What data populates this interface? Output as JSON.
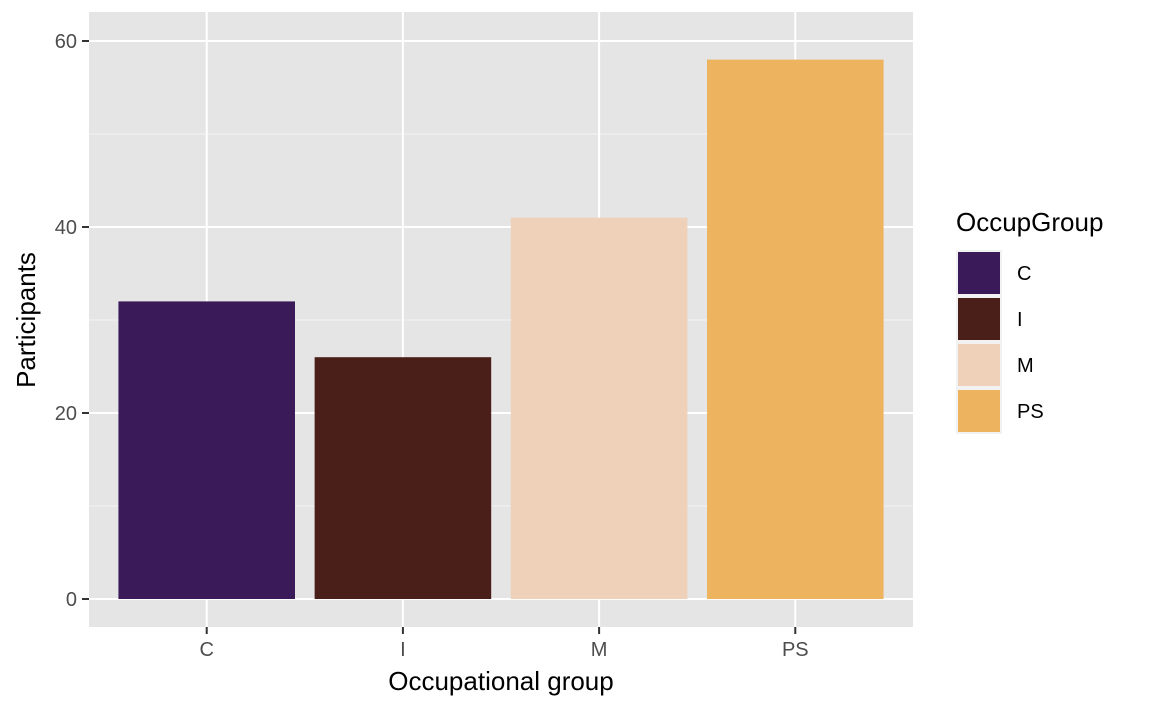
{
  "chart_data": {
    "type": "bar",
    "title": "",
    "xlabel": "Occupational group",
    "ylabel": "Participants",
    "categories": [
      "C",
      "I",
      "M",
      "PS"
    ],
    "values": [
      32,
      26,
      41,
      58
    ],
    "ylim": [
      0,
      60
    ],
    "yticks": [
      0,
      20,
      40,
      60
    ],
    "yticks_labels": [
      "0",
      "20",
      "40",
      "60"
    ],
    "colors": [
      "#3b1a5a",
      "#4b1f19",
      "#efd0b8",
      "#eeb35f"
    ],
    "grid": true,
    "panel_background": "#e5e5e5",
    "legend": {
      "title": "OccupGroup",
      "position": "right",
      "items": [
        "C",
        "I",
        "M",
        "PS"
      ]
    }
  }
}
